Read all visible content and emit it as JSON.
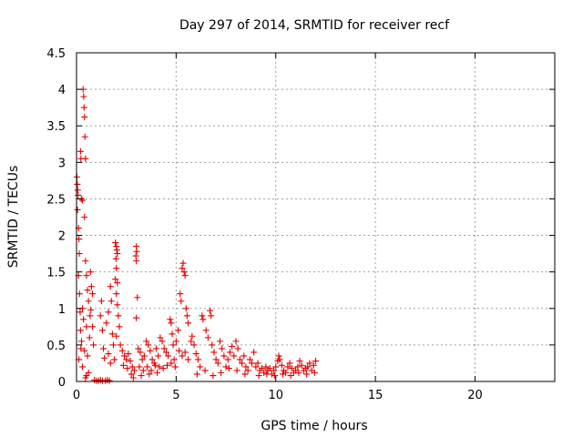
{
  "chart_data": {
    "type": "scatter",
    "title": "Day 297 of 2014, SRMTID for receiver recf",
    "xlabel": "GPS time / hours",
    "ylabel": "SRMTID / TECUs",
    "xlim": [
      0,
      24
    ],
    "ylim": [
      0,
      4.5
    ],
    "xticks": [
      0,
      5,
      10,
      15,
      20
    ],
    "yticks": [
      0,
      0.5,
      1,
      1.5,
      2,
      2.5,
      3,
      3.5,
      4,
      4.5
    ],
    "xtick_labels": [
      "0",
      "5",
      "10",
      "15",
      "20"
    ],
    "ytick_labels": [
      "0",
      "0.5",
      "1",
      "1.5",
      "2",
      "2.5",
      "3",
      "3.5",
      "4",
      "4.5"
    ],
    "grid": true,
    "marker": "+",
    "color": "#e00000",
    "series": [
      {
        "name": "SRMTID",
        "points": [
          [
            0.02,
            2.8
          ],
          [
            0.04,
            2.7
          ],
          [
            0.06,
            2.62
          ],
          [
            0.08,
            2.55
          ],
          [
            0.05,
            2.35
          ],
          [
            0.1,
            2.1
          ],
          [
            0.12,
            1.95
          ],
          [
            0.14,
            1.75
          ],
          [
            0.1,
            1.45
          ],
          [
            0.15,
            1.2
          ],
          [
            0.18,
            0.95
          ],
          [
            0.2,
            0.7
          ],
          [
            0.22,
            0.45
          ],
          [
            0.12,
            0.3
          ],
          [
            0.2,
            3.15
          ],
          [
            0.22,
            3.05
          ],
          [
            0.24,
            2.5
          ],
          [
            0.3,
            2.48
          ],
          [
            0.33,
            4.0
          ],
          [
            0.36,
            3.9
          ],
          [
            0.38,
            3.75
          ],
          [
            0.4,
            3.62
          ],
          [
            0.42,
            3.35
          ],
          [
            0.45,
            3.05
          ],
          [
            0.4,
            2.25
          ],
          [
            0.45,
            1.65
          ],
          [
            0.5,
            1.45
          ],
          [
            0.55,
            1.25
          ],
          [
            0.6,
            1.1
          ],
          [
            0.3,
            1.0
          ],
          [
            0.35,
            0.85
          ],
          [
            0.5,
            0.75
          ],
          [
            0.65,
            0.6
          ],
          [
            0.25,
            0.55
          ],
          [
            0.4,
            0.42
          ],
          [
            0.55,
            0.35
          ],
          [
            0.3,
            0.2
          ],
          [
            0.5,
            0.08
          ],
          [
            0.7,
            1.5
          ],
          [
            0.75,
            1.3
          ],
          [
            0.8,
            1.2
          ],
          [
            0.72,
            0.98
          ],
          [
            0.68,
            0.9
          ],
          [
            0.8,
            0.75
          ],
          [
            0.85,
            0.5
          ],
          [
            0.6,
            0.12
          ],
          [
            0.45,
            0.05
          ],
          [
            0.9,
            0.02
          ],
          [
            1.0,
            0.01
          ],
          [
            1.1,
            0.01
          ],
          [
            1.2,
            0.02
          ],
          [
            1.3,
            0.01
          ],
          [
            1.45,
            0.01
          ],
          [
            1.55,
            0.02
          ],
          [
            1.65,
            0.01
          ],
          [
            1.2,
            0.9
          ],
          [
            1.3,
            0.7
          ],
          [
            1.35,
            0.45
          ],
          [
            1.25,
            1.1
          ],
          [
            1.5,
            0.8
          ],
          [
            1.6,
            0.95
          ],
          [
            1.7,
            1.3
          ],
          [
            1.75,
            1.1
          ],
          [
            1.8,
            0.65
          ],
          [
            1.85,
            0.5
          ],
          [
            1.6,
            0.38
          ],
          [
            1.4,
            0.32
          ],
          [
            1.7,
            0.25
          ],
          [
            1.9,
            0.3
          ],
          [
            1.95,
            1.9
          ],
          [
            2.0,
            1.85
          ],
          [
            2.02,
            1.8
          ],
          [
            2.05,
            1.75
          ],
          [
            1.98,
            1.68
          ],
          [
            2.0,
            1.55
          ],
          [
            1.95,
            1.4
          ],
          [
            2.05,
            1.35
          ],
          [
            2.0,
            1.2
          ],
          [
            2.05,
            1.05
          ],
          [
            2.1,
            0.9
          ],
          [
            2.15,
            0.75
          ],
          [
            2.0,
            0.62
          ],
          [
            2.2,
            0.5
          ],
          [
            2.3,
            0.42
          ],
          [
            2.4,
            0.35
          ],
          [
            2.5,
            0.3
          ],
          [
            2.6,
            0.38
          ],
          [
            2.7,
            0.28
          ],
          [
            2.8,
            0.2
          ],
          [
            2.9,
            0.15
          ],
          [
            2.35,
            0.22
          ],
          [
            2.55,
            0.18
          ],
          [
            2.75,
            0.1
          ],
          [
            2.85,
            0.05
          ],
          [
            3.0,
            1.85
          ],
          [
            3.02,
            1.78
          ],
          [
            2.98,
            1.72
          ],
          [
            3.0,
            1.65
          ],
          [
            3.05,
            1.15
          ],
          [
            3.0,
            0.87
          ],
          [
            3.1,
            0.45
          ],
          [
            3.2,
            0.4
          ],
          [
            3.3,
            0.3
          ],
          [
            3.4,
            0.35
          ],
          [
            3.5,
            0.55
          ],
          [
            3.6,
            0.5
          ],
          [
            3.7,
            0.42
          ],
          [
            3.8,
            0.3
          ],
          [
            3.9,
            0.25
          ],
          [
            4.0,
            0.45
          ],
          [
            4.1,
            0.35
          ],
          [
            4.2,
            0.6
          ],
          [
            4.3,
            0.55
          ],
          [
            4.4,
            0.45
          ],
          [
            4.5,
            0.4
          ],
          [
            4.6,
            0.35
          ],
          [
            4.7,
            0.85
          ],
          [
            4.75,
            0.8
          ],
          [
            4.8,
            0.65
          ],
          [
            4.85,
            0.5
          ],
          [
            4.9,
            0.3
          ],
          [
            3.15,
            0.2
          ],
          [
            3.35,
            0.15
          ],
          [
            3.55,
            0.2
          ],
          [
            3.75,
            0.15
          ],
          [
            3.95,
            0.22
          ],
          [
            4.15,
            0.2
          ],
          [
            4.35,
            0.18
          ],
          [
            4.55,
            0.22
          ],
          [
            4.75,
            0.25
          ],
          [
            4.95,
            0.2
          ],
          [
            3.25,
            0.08
          ],
          [
            3.65,
            0.1
          ],
          [
            4.05,
            0.12
          ],
          [
            5.2,
            1.2
          ],
          [
            5.25,
            1.1
          ],
          [
            5.3,
            1.55
          ],
          [
            5.35,
            1.62
          ],
          [
            5.4,
            1.5
          ],
          [
            5.45,
            1.45
          ],
          [
            5.5,
            1.0
          ],
          [
            5.55,
            0.9
          ],
          [
            5.6,
            0.8
          ],
          [
            5.1,
            0.7
          ],
          [
            5.0,
            0.55
          ],
          [
            5.15,
            0.42
          ],
          [
            5.3,
            0.35
          ],
          [
            5.45,
            0.4
          ],
          [
            5.6,
            0.3
          ],
          [
            5.75,
            0.55
          ],
          [
            5.8,
            0.62
          ],
          [
            5.9,
            0.5
          ],
          [
            6.0,
            0.38
          ],
          [
            6.1,
            0.3
          ],
          [
            6.2,
            0.2
          ],
          [
            6.3,
            0.9
          ],
          [
            6.35,
            0.85
          ],
          [
            6.5,
            0.7
          ],
          [
            6.6,
            0.6
          ],
          [
            6.7,
            0.97
          ],
          [
            6.75,
            0.9
          ],
          [
            6.8,
            0.5
          ],
          [
            6.9,
            0.4
          ],
          [
            7.0,
            0.3
          ],
          [
            7.1,
            0.25
          ],
          [
            7.2,
            0.55
          ],
          [
            7.3,
            0.45
          ],
          [
            7.4,
            0.35
          ],
          [
            7.5,
            0.2
          ],
          [
            7.6,
            0.3
          ],
          [
            7.7,
            0.4
          ],
          [
            7.8,
            0.48
          ],
          [
            7.9,
            0.35
          ],
          [
            8.0,
            0.55
          ],
          [
            8.1,
            0.45
          ],
          [
            8.2,
            0.3
          ],
          [
            8.3,
            0.25
          ],
          [
            8.4,
            0.35
          ],
          [
            8.5,
            0.2
          ],
          [
            8.6,
            0.15
          ],
          [
            8.7,
            0.3
          ],
          [
            8.8,
            0.25
          ],
          [
            8.9,
            0.4
          ],
          [
            6.05,
            0.1
          ],
          [
            6.45,
            0.15
          ],
          [
            6.85,
            0.08
          ],
          [
            7.25,
            0.12
          ],
          [
            7.65,
            0.18
          ],
          [
            8.05,
            0.15
          ],
          [
            8.45,
            0.1
          ],
          [
            9.0,
            0.2
          ],
          [
            9.1,
            0.25
          ],
          [
            9.2,
            0.15
          ],
          [
            9.3,
            0.18
          ],
          [
            9.4,
            0.12
          ],
          [
            9.5,
            0.2
          ],
          [
            9.6,
            0.15
          ],
          [
            9.7,
            0.18
          ],
          [
            9.8,
            0.1
          ],
          [
            9.9,
            0.15
          ],
          [
            10.0,
            0.2
          ],
          [
            10.1,
            0.28
          ],
          [
            10.15,
            0.35
          ],
          [
            10.2,
            0.3
          ],
          [
            10.3,
            0.22
          ],
          [
            10.4,
            0.15
          ],
          [
            10.5,
            0.12
          ],
          [
            10.6,
            0.2
          ],
          [
            10.7,
            0.25
          ],
          [
            10.8,
            0.18
          ],
          [
            10.9,
            0.12
          ],
          [
            11.0,
            0.15
          ],
          [
            11.1,
            0.2
          ],
          [
            11.2,
            0.28
          ],
          [
            11.3,
            0.22
          ],
          [
            11.4,
            0.15
          ],
          [
            11.5,
            0.18
          ],
          [
            11.6,
            0.2
          ],
          [
            11.7,
            0.25
          ],
          [
            11.8,
            0.15
          ],
          [
            11.9,
            0.22
          ],
          [
            12.0,
            0.28
          ],
          [
            9.15,
            0.08
          ],
          [
            9.55,
            0.1
          ],
          [
            9.95,
            0.08
          ],
          [
            10.35,
            0.1
          ],
          [
            10.75,
            0.08
          ],
          [
            11.15,
            0.12
          ],
          [
            11.55,
            0.1
          ],
          [
            11.95,
            0.12
          ]
        ]
      }
    ]
  }
}
